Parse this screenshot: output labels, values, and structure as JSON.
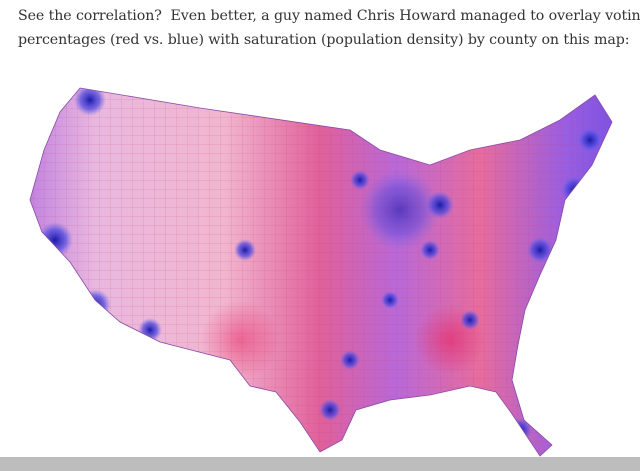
{
  "article": {
    "paragraph_lines": [
      "See the correlation?  Even better, a guy named Chris Howard managed to overlay voting",
      "percentages (red vs. blue) with saturation (population density) by county on this map:"
    ]
  }
}
